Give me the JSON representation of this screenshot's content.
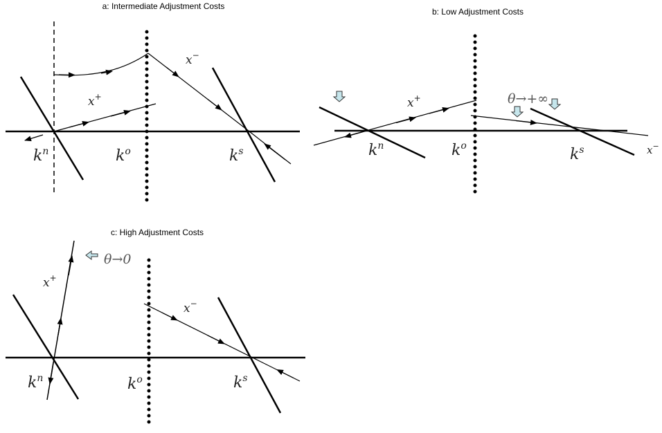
{
  "panels": {
    "a": {
      "title": "a: Intermediate Adjustment Costs",
      "labels": {
        "kn": "k",
        "kn_sup": "n",
        "ko": "k",
        "ko_sup": "o",
        "ks": "k",
        "ks_sup": "s",
        "xplus": "x",
        "xplus_sup": "+",
        "xminus": "x",
        "xminus_sup": "−"
      }
    },
    "b": {
      "title": "b: Low Adjustment Costs",
      "labels": {
        "kn": "k",
        "kn_sup": "n",
        "ko": "k",
        "ko_sup": "o",
        "ks": "k",
        "ks_sup": "s",
        "xplus": "x",
        "xplus_sup": "+",
        "xminus": "x",
        "xminus_sup": "−",
        "theta": "θ→+∞"
      }
    },
    "c": {
      "title": "c: High Adjustment Costs",
      "labels": {
        "kn": "k",
        "kn_sup": "n",
        "ko": "k",
        "ko_sup": "o",
        "ks": "k",
        "ks_sup": "s",
        "xplus": "x",
        "xplus_sup": "+",
        "xminus": "x",
        "xminus_sup": "−",
        "theta": "θ→0"
      }
    }
  },
  "colors": {
    "line": "#000000",
    "arrow_fill": "#c6e6ec",
    "arrow_stroke": "#333333"
  }
}
